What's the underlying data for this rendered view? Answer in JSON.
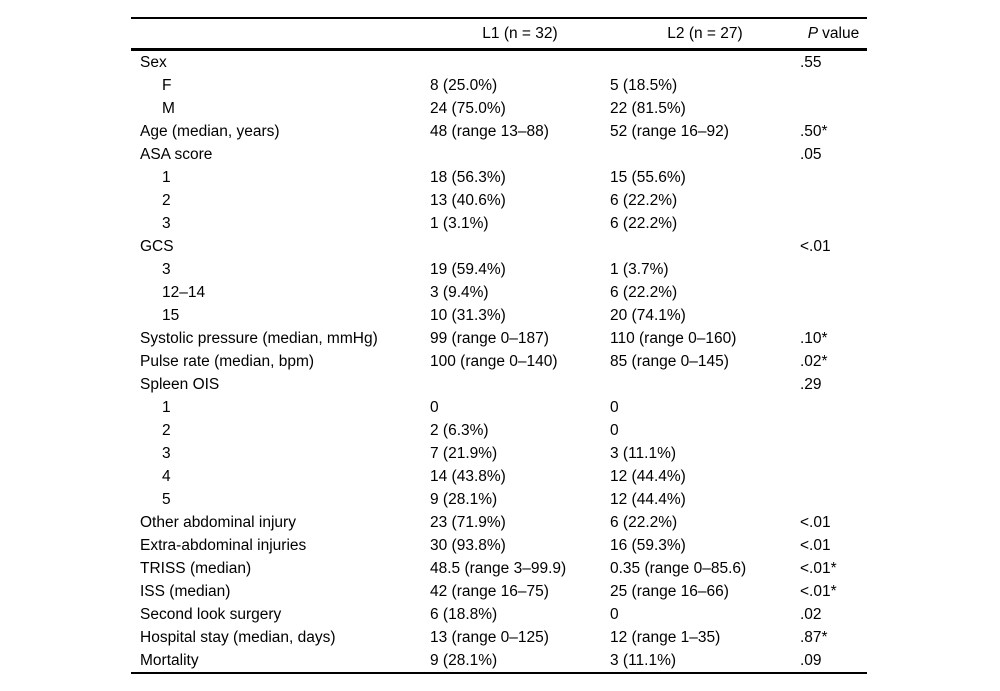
{
  "colors": {
    "text": "#000000",
    "rule": "#000000",
    "background": "#ffffff"
  },
  "table": {
    "header": {
      "l1": "L1 (n = 32)",
      "l2": "L2 (n = 27)",
      "p_symbol": "P",
      "p_label": "value"
    },
    "rows": [
      {
        "label": "Sex",
        "indent": false,
        "l1": "",
        "l2": "",
        "p": ".55"
      },
      {
        "label": "F",
        "indent": true,
        "l1": "8 (25.0%)",
        "l2": "5 (18.5%)",
        "p": ""
      },
      {
        "label": "M",
        "indent": true,
        "l1": "24 (75.0%)",
        "l2": "22 (81.5%)",
        "p": ""
      },
      {
        "label": "Age (median, years)",
        "indent": false,
        "l1": "48 (range 13–88)",
        "l2": "52 (range 16–92)",
        "p": ".50*"
      },
      {
        "label": "ASA score",
        "indent": false,
        "l1": "",
        "l2": "",
        "p": ".05"
      },
      {
        "label": "1",
        "indent": true,
        "l1": "18 (56.3%)",
        "l2": "15 (55.6%)",
        "p": ""
      },
      {
        "label": "2",
        "indent": true,
        "l1": "13 (40.6%)",
        "l2": "6 (22.2%)",
        "p": ""
      },
      {
        "label": "3",
        "indent": true,
        "l1": "1 (3.1%)",
        "l2": "6 (22.2%)",
        "p": ""
      },
      {
        "label": "GCS",
        "indent": false,
        "l1": "",
        "l2": "",
        "p": "<.01"
      },
      {
        "label": "3",
        "indent": true,
        "l1": "19 (59.4%)",
        "l2": "1 (3.7%)",
        "p": ""
      },
      {
        "label": "12–14",
        "indent": true,
        "l1": "3 (9.4%)",
        "l2": "6 (22.2%)",
        "p": ""
      },
      {
        "label": "15",
        "indent": true,
        "l1": "10 (31.3%)",
        "l2": "20 (74.1%)",
        "p": ""
      },
      {
        "label": "Systolic pressure (median, mmHg)",
        "indent": false,
        "l1": "99 (range 0–187)",
        "l2": "110 (range 0–160)",
        "p": ".10*"
      },
      {
        "label": "Pulse rate (median, bpm)",
        "indent": false,
        "l1": "100 (range 0–140)",
        "l2": "85 (range 0–145)",
        "p": ".02*"
      },
      {
        "label": "Spleen OIS",
        "indent": false,
        "l1": "",
        "l2": "",
        "p": ".29"
      },
      {
        "label": "1",
        "indent": true,
        "l1": "0",
        "l2": "0",
        "p": ""
      },
      {
        "label": "2",
        "indent": true,
        "l1": "2 (6.3%)",
        "l2": "0",
        "p": ""
      },
      {
        "label": "3",
        "indent": true,
        "l1": "7 (21.9%)",
        "l2": "3 (11.1%)",
        "p": ""
      },
      {
        "label": "4",
        "indent": true,
        "l1": "14 (43.8%)",
        "l2": "12 (44.4%)",
        "p": ""
      },
      {
        "label": "5",
        "indent": true,
        "l1": "9 (28.1%)",
        "l2": "12 (44.4%)",
        "p": ""
      },
      {
        "label": "Other abdominal injury",
        "indent": false,
        "l1": "23 (71.9%)",
        "l2": "6 (22.2%)",
        "p": "<.01"
      },
      {
        "label": "Extra-abdominal injuries",
        "indent": false,
        "l1": "30 (93.8%)",
        "l2": "16 (59.3%)",
        "p": "<.01"
      },
      {
        "label": "TRISS (median)",
        "indent": false,
        "l1": "48.5 (range 3–99.9)",
        "l2": "0.35 (range 0–85.6)",
        "p": "<.01*"
      },
      {
        "label": "ISS (median)",
        "indent": false,
        "l1": "42 (range 16–75)",
        "l2": "25 (range 16–66)",
        "p": "<.01*"
      },
      {
        "label": "Second look surgery",
        "indent": false,
        "l1": "6 (18.8%)",
        "l2": "0",
        "p": ".02"
      },
      {
        "label": "Hospital stay (median, days)",
        "indent": false,
        "l1": "13 (range 0–125)",
        "l2": "12 (range 1–35)",
        "p": ".87*"
      },
      {
        "label": "Mortality",
        "indent": false,
        "l1": "9 (28.1%)",
        "l2": "3 (11.1%)",
        "p": ".09"
      }
    ]
  }
}
